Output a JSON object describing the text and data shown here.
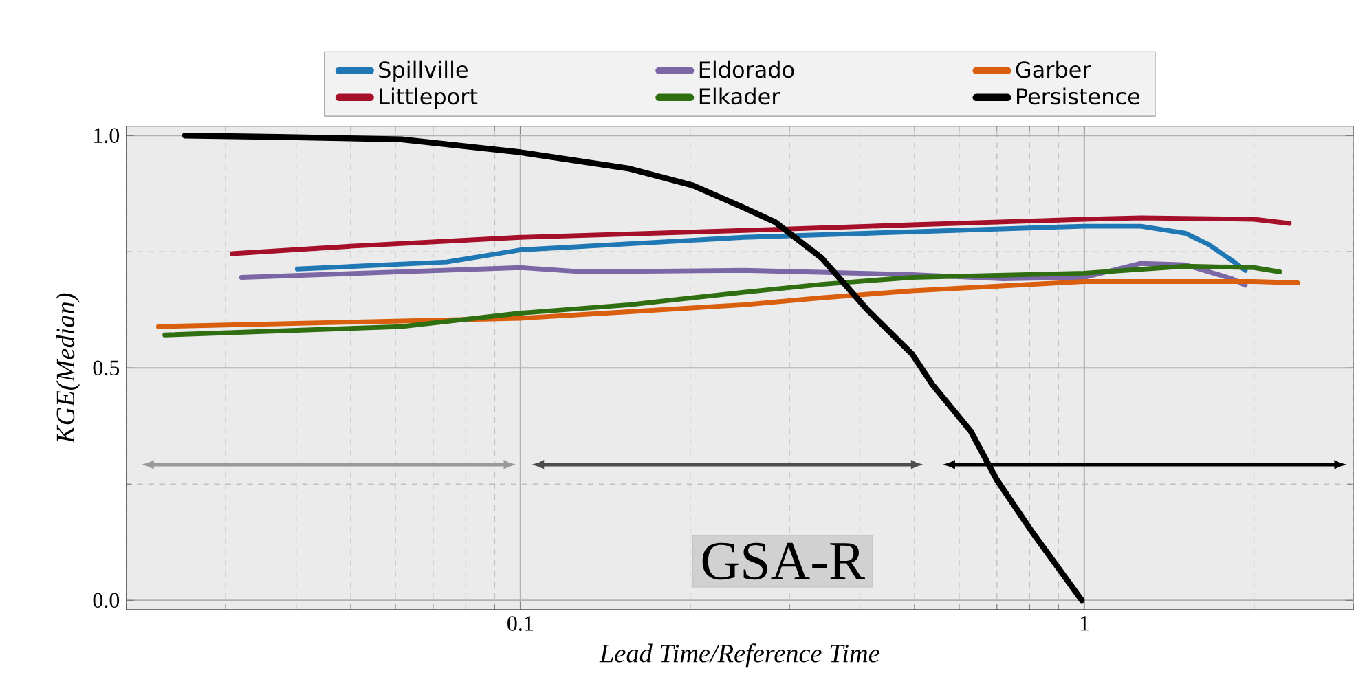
{
  "chart_data": {
    "type": "line",
    "xlabel": "Lead Time/Reference Time",
    "ylabel": "KGE(Median)",
    "log": "x",
    "xlim": [
      0.02,
      3
    ],
    "ylim": [
      -0.02,
      1.02
    ],
    "xticks": [
      0.1,
      1
    ],
    "yticks": [
      {
        "value": 0,
        "label": "0.0"
      },
      {
        "value": 0.5,
        "label": "0.5"
      },
      {
        "value": 1,
        "label": "1.0"
      }
    ],
    "grid": true,
    "legend": "top",
    "line_style": "solid",
    "marker": "none",
    "series": [
      {
        "name": "Spillville",
        "color": "#1f78b4",
        "x": [
          0.0402,
          0.074,
          0.1,
          0.249,
          0.495,
          1.0,
          1.26,
          1.51,
          1.66,
          1.83,
          1.93
        ],
        "values": [
          0.713,
          0.728,
          0.754,
          0.781,
          0.793,
          0.805,
          0.805,
          0.79,
          0.766,
          0.731,
          0.71
        ]
      },
      {
        "name": "Eldorado",
        "color": "#7b66a6",
        "x": [
          0.032,
          0.0615,
          0.1,
          0.129,
          0.249,
          0.495,
          0.719,
          1.0,
          1.26,
          1.51,
          1.83,
          1.93
        ],
        "values": [
          0.695,
          0.707,
          0.716,
          0.707,
          0.71,
          0.701,
          0.692,
          0.695,
          0.725,
          0.722,
          0.692,
          0.678
        ]
      },
      {
        "name": "Garber",
        "color": "#d95f0e",
        "x": [
          0.0228,
          0.1,
          0.156,
          0.249,
          0.342,
          0.495,
          1.0,
          1.51,
          2.0,
          2.39
        ],
        "values": [
          0.589,
          0.607,
          0.621,
          0.636,
          0.651,
          0.666,
          0.686,
          0.686,
          0.686,
          0.683
        ]
      },
      {
        "name": "Littleport",
        "color": "#a50f2a",
        "x": [
          0.0308,
          0.05,
          0.1,
          0.249,
          0.495,
          1.0,
          1.26,
          2.0,
          2.31
        ],
        "values": [
          0.746,
          0.762,
          0.781,
          0.796,
          0.808,
          0.82,
          0.823,
          0.82,
          0.811
        ]
      },
      {
        "name": "Elkader",
        "color": "#2f6f12",
        "x": [
          0.0234,
          0.0615,
          0.1,
          0.156,
          0.249,
          0.342,
          0.495,
          1.0,
          1.51,
          2.0,
          2.22
        ],
        "values": [
          0.571,
          0.589,
          0.618,
          0.636,
          0.663,
          0.68,
          0.695,
          0.704,
          0.719,
          0.716,
          0.707
        ]
      },
      {
        "name": "Persistence",
        "color": "#000000",
        "x": [
          0.0254,
          0.0372,
          0.0615,
          0.1,
          0.156,
          0.202,
          0.249,
          0.283,
          0.342,
          0.411,
          0.495,
          0.538,
          0.629,
          0.699,
          0.804,
          0.99
        ],
        "values": [
          1.0,
          0.997,
          0.992,
          0.964,
          0.929,
          0.893,
          0.845,
          0.814,
          0.737,
          0.627,
          0.53,
          0.464,
          0.364,
          0.26,
          0.151,
          0.0
        ]
      }
    ],
    "annotations": [
      "GSA-R"
    ]
  }
}
